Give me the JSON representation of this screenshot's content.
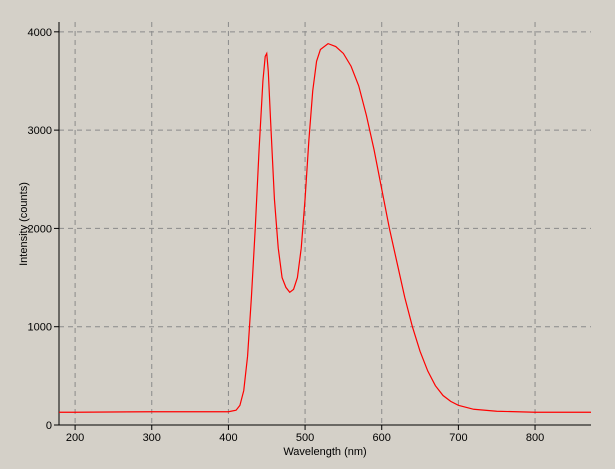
{
  "chart_data": {
    "type": "line",
    "xlabel": "Wavelength (nm)",
    "ylabel": "Intensity (counts)",
    "x": [
      179,
      200,
      300,
      380,
      400,
      410,
      415,
      420,
      425,
      430,
      435,
      440,
      445,
      448,
      450,
      452,
      455,
      460,
      465,
      470,
      475,
      480,
      485,
      490,
      495,
      500,
      505,
      510,
      515,
      520,
      530,
      540,
      550,
      560,
      570,
      580,
      590,
      600,
      610,
      620,
      630,
      640,
      650,
      660,
      670,
      680,
      690,
      700,
      720,
      750,
      800,
      873
    ],
    "series": [
      {
        "color": "#ff0000",
        "values": [
          130,
          130,
          135,
          135,
          135,
          150,
          200,
          350,
          700,
          1300,
          2000,
          2800,
          3500,
          3750,
          3780,
          3600,
          3100,
          2300,
          1800,
          1500,
          1400,
          1350,
          1380,
          1500,
          1800,
          2300,
          2900,
          3400,
          3700,
          3820,
          3880,
          3850,
          3780,
          3650,
          3450,
          3150,
          2800,
          2400,
          2000,
          1650,
          1300,
          1000,
          750,
          550,
          400,
          300,
          240,
          200,
          160,
          140,
          130,
          130
        ]
      }
    ],
    "xlim": [
      179,
      873
    ],
    "ylim": [
      0,
      4100
    ],
    "xticks": [
      200,
      300,
      400,
      500,
      600,
      700,
      800
    ],
    "yticks": [
      0,
      1000,
      2000,
      3000,
      4000
    ],
    "grid": true
  }
}
